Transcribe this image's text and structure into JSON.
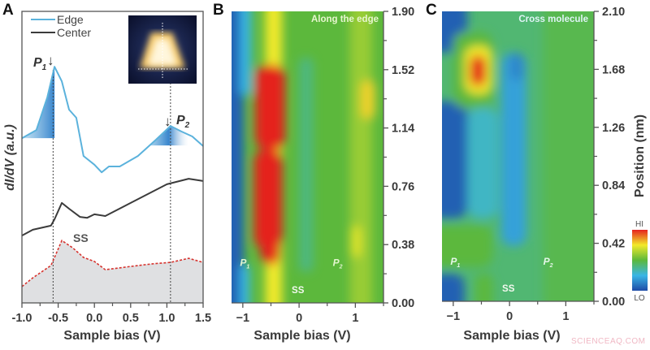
{
  "watermark": "SCIENCEAQ.COM",
  "colors": {
    "edge": "#5bb2dc",
    "center": "#3b3b3b",
    "ss": "#d6332e",
    "ss_fill": "#dfe0e2",
    "axis": "#3a3a3a"
  },
  "colormap": [
    "#1e4ba6",
    "#39b6e6",
    "#5cb83c",
    "#f2ea2a",
    "#e5231f"
  ],
  "chart_data": [
    {
      "type": "line",
      "panel": "A",
      "xlabel": "Sample bias (V)",
      "ylabel": "dI/dV (a.u.)",
      "xlim": [
        -1.0,
        1.5
      ],
      "xticks": [
        "-1.0",
        "-0.5",
        "0.0",
        "0.5",
        "1.0",
        "1.5"
      ],
      "xtick_values": [
        -1.0,
        -0.5,
        0.0,
        0.5,
        1.0,
        1.5
      ],
      "legend": [
        "Edge",
        "Center"
      ],
      "legend_position": "top-left",
      "annotations": {
        "p1": "P",
        "p1_sub": "1",
        "p2": "P",
        "p2_sub": "2",
        "ss": "SS",
        "arrow": "↓"
      },
      "marker_lines": [
        -0.57,
        1.05
      ],
      "series": [
        {
          "name": "Edge",
          "x": [
            -1.0,
            -0.8,
            -0.65,
            -0.55,
            -0.45,
            -0.35,
            -0.25,
            -0.15,
            0.0,
            0.1,
            0.2,
            0.35,
            0.6,
            0.85,
            1.05,
            1.2,
            1.35,
            1.5
          ],
          "y": [
            5.65,
            5.93,
            7.05,
            8.1,
            7.6,
            6.63,
            6.35,
            5.04,
            4.74,
            4.48,
            4.68,
            4.68,
            5.04,
            5.6,
            6.07,
            5.88,
            5.71,
            5.38
          ]
        },
        {
          "name": "Center",
          "x": [
            -1.0,
            -0.85,
            -0.6,
            -0.55,
            -0.45,
            -0.35,
            -0.2,
            -0.1,
            0.0,
            0.15,
            0.5,
            1.0,
            1.3,
            1.5
          ],
          "y": [
            2.31,
            2.51,
            2.65,
            2.87,
            3.43,
            3.23,
            2.95,
            2.92,
            3.04,
            2.98,
            3.43,
            4.07,
            4.26,
            4.18
          ]
        },
        {
          "x": [
            -1.0,
            -0.85,
            -0.6,
            -0.55,
            -0.45,
            -0.3,
            -0.15,
            0.0,
            0.15,
            0.5,
            0.8,
            1.05,
            1.3,
            1.5
          ],
          "y": [
            0.56,
            0.86,
            1.28,
            1.56,
            2.14,
            1.89,
            1.56,
            1.42,
            1.14,
            1.25,
            1.34,
            1.39,
            1.53,
            1.39
          ]
        }
      ]
    },
    {
      "type": "heatmap",
      "panel": "B",
      "title": "Along the edge",
      "xlabel": "Sample bias (V)",
      "xlim": [
        -1.2,
        1.5
      ],
      "ylim": [
        0,
        1.9
      ],
      "xticks": [
        "−1",
        "0",
        "1"
      ],
      "xtick_values": [
        -1,
        0,
        1
      ],
      "yticks": [
        "0.00",
        "0.38",
        "0.76",
        "1.14",
        "1.52",
        "1.90"
      ],
      "ytick_values": [
        0,
        0.38,
        0.76,
        1.14,
        1.52,
        1.9
      ],
      "labels": {
        "p1": "P",
        "p1_sub": "1",
        "p2": "P",
        "p2_sub": "2",
        "ss": "SS"
      },
      "base_level": 0.5,
      "regions": [
        {
          "bias": [
            -1.2,
            -0.98
          ],
          "position": [
            0,
            1.9
          ],
          "level": 0.05
        },
        {
          "bias": [
            -1.05,
            -0.85
          ],
          "position": [
            1.35,
            1.9
          ],
          "level": 0.25
        },
        {
          "bias": [
            -1.05,
            -0.88
          ],
          "position": [
            0,
            0.25
          ],
          "level": 0.25
        },
        {
          "bias": [
            -0.6,
            -0.3
          ],
          "position": [
            0,
            1.9
          ],
          "level": 0.75
        },
        {
          "bias": [
            0.0,
            0.25
          ],
          "position": [
            0.2,
            1.6
          ],
          "level": 0.4
        },
        {
          "bias": [
            0.9,
            1.3
          ],
          "position": [
            0,
            1.9
          ],
          "level": 0.6
        },
        {
          "bias": [
            1.1,
            1.35
          ],
          "position": [
            1.2,
            1.45
          ],
          "level": 0.78
        },
        {
          "bias": [
            0.92,
            1.1
          ],
          "position": [
            0.3,
            0.5
          ],
          "level": 0.72
        },
        {
          "bias": [
            -0.8,
            -0.3
          ],
          "position": [
            0.35,
            1.0
          ],
          "level": 1
        },
        {
          "bias": [
            -0.78,
            -0.25
          ],
          "position": [
            1.0,
            1.55
          ],
          "level": 1
        },
        {
          "bias": [
            -0.68,
            -0.35
          ],
          "position": [
            0.25,
            0.45
          ],
          "level": 1
        }
      ]
    },
    {
      "type": "heatmap",
      "panel": "C",
      "title": "Cross molecule",
      "xlabel": "Sample bias (V)",
      "ylabel": "Position (nm)",
      "xlim": [
        -1.2,
        1.5
      ],
      "ylim": [
        0,
        2.1
      ],
      "xticks": [
        "−1",
        "0",
        "1"
      ],
      "xtick_values": [
        -1,
        0,
        1
      ],
      "yticks": [
        "0.00",
        "0.42",
        "0.84",
        "1.26",
        "1.68",
        "2.10"
      ],
      "ytick_values": [
        0,
        0.42,
        0.84,
        1.26,
        1.68,
        2.1
      ],
      "labels": {
        "p1": "P",
        "p1_sub": "1",
        "p2": "P",
        "p2_sub": "2",
        "ss": "SS"
      },
      "colorbar": {
        "hi": "HI",
        "lo": "LO"
      },
      "base_level": 0.42,
      "regions": [
        {
          "bias": [
            0.6,
            1.5
          ],
          "position": [
            0,
            2.1
          ],
          "level": 0.47
        },
        {
          "bias": [
            -1.2,
            -0.75
          ],
          "position": [
            0.6,
            1.45
          ],
          "level": 0.05
        },
        {
          "bias": [
            -1.2,
            -0.75
          ],
          "position": [
            1.8,
            2.1
          ],
          "level": 0.05
        },
        {
          "bias": [
            -1.2,
            -0.8
          ],
          "position": [
            0,
            0.2
          ],
          "level": 0.05
        },
        {
          "bias": [
            -1.0,
            -0.3
          ],
          "position": [
            1.4,
            1.95
          ],
          "level": 0.5
        },
        {
          "bias": [
            -1.2,
            -0.3
          ],
          "position": [
            0.25,
            0.55
          ],
          "level": 0.5
        },
        {
          "bias": [
            -0.6,
            -0.3
          ],
          "position": [
            0,
            0.2
          ],
          "level": 0.5
        },
        {
          "bias": [
            -0.75,
            -0.2
          ],
          "position": [
            0.6,
            1.4
          ],
          "level": 0.3
        },
        {
          "bias": [
            -0.15,
            0.3
          ],
          "position": [
            0.4,
            1.8
          ],
          "level": 0.2
        },
        {
          "bias": [
            0.0,
            0.25
          ],
          "position": [
            1.6,
            1.8
          ],
          "level": 0.14
        },
        {
          "bias": [
            -0.8,
            -0.3
          ],
          "position": [
            1.5,
            1.85
          ],
          "level": 0.75
        },
        {
          "bias": [
            -0.7,
            -0.42
          ],
          "position": [
            1.56,
            1.78
          ],
          "level": 1
        }
      ]
    }
  ]
}
